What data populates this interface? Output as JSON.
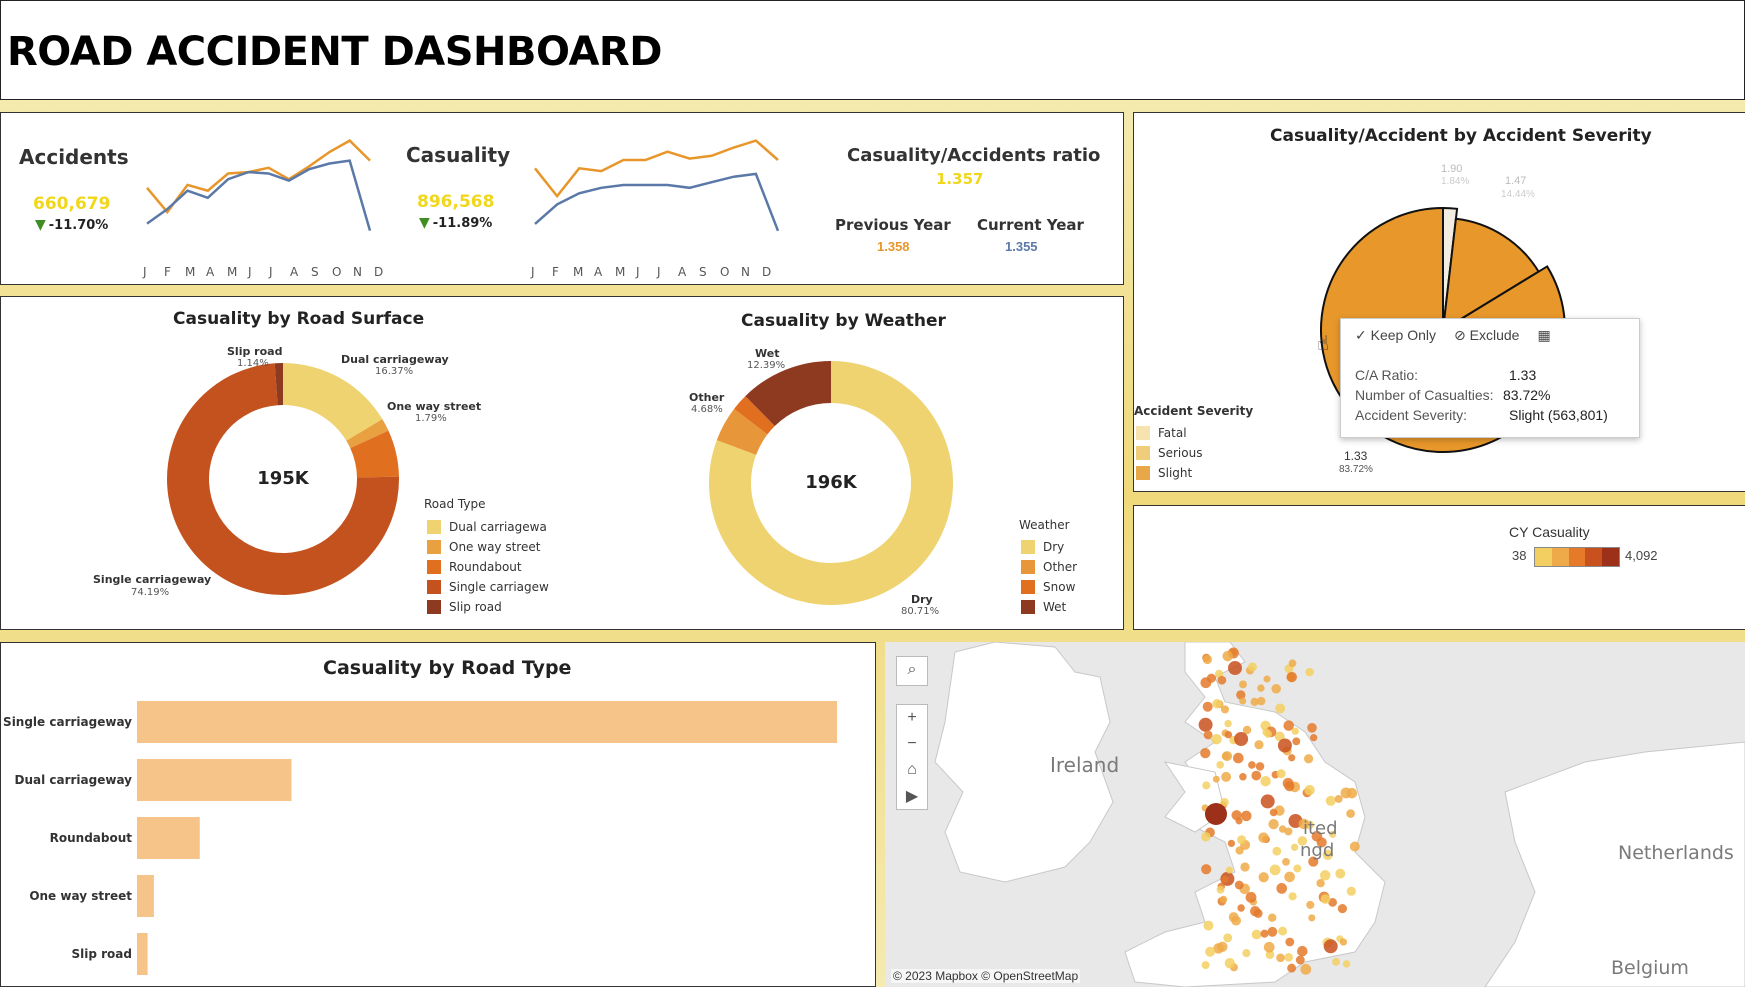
{
  "dashboard": {
    "title": "ROAD ACCIDENT DASHBOARD"
  },
  "kpis": {
    "accidents": {
      "label": "Accidents",
      "value": "660,679",
      "delta": "-11.70%"
    },
    "casualty": {
      "label": "Casuality",
      "value": "896,568",
      "delta": "-11.89%"
    },
    "ratio": {
      "label": "Casuality/Accidents ratio",
      "value": "1.357",
      "previous_label": "Previous Year",
      "previous_value": "1.358",
      "current_label": "Current Year",
      "current_value": "1.355"
    },
    "months": [
      "J",
      "F",
      "M",
      "A",
      "M",
      "J",
      "J",
      "A",
      "S",
      "O",
      "N",
      "D"
    ]
  },
  "road_surface": {
    "title": "Casuality by Road Surface",
    "center_label": "195K",
    "legend_title": "Road Type",
    "legend": [
      "Dual carriagewa",
      "One way street",
      "Roundabout",
      "Single carriagew",
      "Slip road"
    ],
    "labels": {
      "slip": {
        "name": "Slip road",
        "pct": "1.14%"
      },
      "dual": {
        "name": "Dual carriageway",
        "pct": "16.37%"
      },
      "oneway": {
        "name": "One way street",
        "pct": "1.79%"
      },
      "single": {
        "name": "Single carriageway",
        "pct": "74.19%"
      }
    }
  },
  "weather": {
    "title": "Casuality by Weather",
    "center_label": "196K",
    "legend_title": "Weather",
    "legend": [
      "Dry",
      "Other",
      "Snow",
      "Wet"
    ],
    "labels": {
      "wet": {
        "name": "Wet",
        "pct": "12.39%"
      },
      "other": {
        "name": "Other",
        "pct": "4.68%"
      },
      "dry": {
        "name": "Dry",
        "pct": "80.71%"
      }
    }
  },
  "severity": {
    "title": "Casuality/Accident by Accident Severity",
    "legend_title": "Accident Severity",
    "legend": [
      "Fatal",
      "Serious",
      "Slight"
    ],
    "labels": {
      "fatal": {
        "ratio": "1.90",
        "pct": "1.84%"
      },
      "serious": {
        "ratio": "1.47",
        "pct": "14.44%"
      },
      "slight": {
        "ratio": "1.33",
        "pct": "83.72%"
      }
    }
  },
  "tooltip": {
    "keep_only": "Keep Only",
    "exclude": "Exclude",
    "rows": [
      {
        "label": "C/A Ratio:",
        "value": "1.33"
      },
      {
        "label": "Number of Casualties:",
        "value": "83.72%"
      },
      {
        "label": "Accident Severity:",
        "value": "Slight (563,801)"
      }
    ]
  },
  "cy_casualty": {
    "title": "CY Casuality",
    "min": "38",
    "max": "4,092"
  },
  "road_type": {
    "title": "Casuality by Road Type",
    "categories": [
      "Single carriageway",
      "Dual carriageway",
      "Roundabout",
      "One way street",
      "Slip road"
    ]
  },
  "map": {
    "labels": {
      "ireland": "Ireland",
      "netherlands": "Netherlands",
      "belgium": "Belgium",
      "uk_partial": "ited",
      "uk_partial2": "ngd"
    },
    "attribution": "© 2023 Mapbox  © OpenStreetMap"
  },
  "colors": {
    "cy_line": "#e8962a",
    "py_line": "#5b79a8",
    "bar": "#f6c389",
    "dual": "#efd370",
    "oneway": "#e8a040",
    "roundabout": "#e07020",
    "single": "#c4521f",
    "slip": "#8e3a20"
  },
  "chart_data": [
    {
      "type": "pie",
      "title": "Casuality by Road Surface",
      "categories": [
        "Dual carriageway",
        "One way street",
        "Roundabout",
        "Single carriageway",
        "Slip road"
      ],
      "values": [
        16.37,
        1.79,
        6.51,
        74.19,
        1.14
      ]
    },
    {
      "type": "pie",
      "title": "Casuality by Weather",
      "categories": [
        "Dry",
        "Other",
        "Snow",
        "Wet"
      ],
      "values": [
        80.71,
        4.68,
        2.22,
        12.39
      ]
    },
    {
      "type": "pie",
      "title": "Casuality/Accident by Accident Severity",
      "categories": [
        "Fatal",
        "Serious",
        "Slight"
      ],
      "values": [
        1.84,
        14.44,
        83.72
      ]
    },
    {
      "type": "bar",
      "title": "Casuality by Road Type",
      "categories": [
        "Single carriageway",
        "Dual carriageway",
        "Roundabout",
        "One way street",
        "Slip road"
      ],
      "values": [
        145000,
        32000,
        13000,
        3500,
        2200
      ]
    },
    {
      "type": "line",
      "title": "Accidents",
      "x": [
        "J",
        "F",
        "M",
        "A",
        "M",
        "J",
        "J",
        "A",
        "S",
        "O",
        "N",
        "D"
      ],
      "series": [
        {
          "name": "Current Year",
          "values": [
            45,
            28,
            47,
            43,
            55,
            56,
            59,
            51,
            60,
            70,
            78,
            64
          ]
        },
        {
          "name": "Previous Year",
          "values": [
            20,
            30,
            43,
            38,
            51,
            56,
            55,
            50,
            58,
            62,
            64,
            15
          ]
        }
      ]
    },
    {
      "type": "line",
      "title": "Casuality",
      "x": [
        "J",
        "F",
        "M",
        "A",
        "M",
        "J",
        "J",
        "A",
        "S",
        "O",
        "N",
        "D"
      ],
      "series": [
        {
          "name": "Current Year",
          "values": [
            60,
            40,
            60,
            58,
            66,
            66,
            72,
            67,
            69,
            75,
            80,
            66
          ]
        },
        {
          "name": "Previous Year",
          "values": [
            20,
            34,
            42,
            46,
            48,
            48,
            48,
            46,
            50,
            54,
            56,
            15
          ]
        }
      ]
    }
  ]
}
